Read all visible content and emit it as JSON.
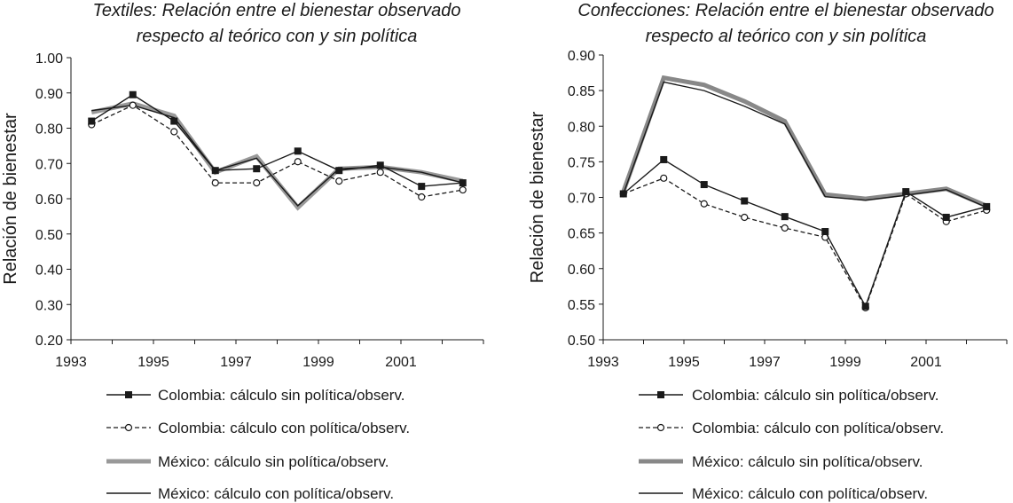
{
  "chart_data": [
    {
      "type": "line",
      "title": [
        "Textiles: Relación entre el bienestar observado",
        "respecto al teórico con y sin política"
      ],
      "ylabel": "Relación de bienestar",
      "xlabel": "",
      "x": [
        1993,
        1994,
        1995,
        1996,
        1997,
        1998,
        1999,
        2000,
        2001,
        2002
      ],
      "x_tick_labels": [
        "1993",
        "1995",
        "1997",
        "1999",
        "2001"
      ],
      "ylim": [
        0.2,
        1.0
      ],
      "y_ticks": [
        "0.20",
        "0.30",
        "0.40",
        "0.50",
        "0.60",
        "0.70",
        "0.80",
        "0.90",
        "1.00"
      ],
      "series": [
        {
          "name": "Colombia: cálculo sin política/observ.",
          "style": "solid-square",
          "color": "#1a1a1a",
          "values": [
            0.82,
            0.895,
            0.82,
            0.68,
            0.685,
            0.735,
            0.68,
            0.695,
            0.635,
            0.645
          ]
        },
        {
          "name": "Colombia: cálculo con política/observ.",
          "style": "dashed-circle",
          "color": "#1a1a1a",
          "values": [
            0.81,
            0.865,
            0.79,
            0.645,
            0.645,
            0.705,
            0.65,
            0.675,
            0.605,
            0.625
          ]
        },
        {
          "name": "México: cálculo sin política/observ.",
          "style": "thick-gray",
          "color": "#999999",
          "values": [
            0.845,
            0.87,
            0.835,
            0.675,
            0.72,
            0.575,
            0.685,
            0.69,
            0.675,
            0.65
          ]
        },
        {
          "name": "México: cálculo con política/observ.",
          "style": "thin",
          "color": "#1a1a1a",
          "values": [
            0.85,
            0.865,
            0.83,
            0.68,
            0.715,
            0.58,
            0.685,
            0.69,
            0.675,
            0.645
          ]
        }
      ]
    },
    {
      "type": "line",
      "title": [
        "Confecciones: Relación entre el bienestar observado",
        "respecto al teórico con y sin política"
      ],
      "ylabel": "Relación de bienestar",
      "xlabel": "",
      "x": [
        1993,
        1994,
        1995,
        1996,
        1997,
        1998,
        1999,
        2000,
        2001,
        2002
      ],
      "x_tick_labels": [
        "1993",
        "1995",
        "1997",
        "1999",
        "2001"
      ],
      "ylim": [
        0.5,
        0.9
      ],
      "y_ticks": [
        "0.50",
        "0.55",
        "0.60",
        "0.65",
        "0.70",
        "0.75",
        "0.80",
        "0.85",
        "0.90"
      ],
      "series": [
        {
          "name": "Colombia: cálculo sin política/observ.",
          "style": "solid-square",
          "color": "#1a1a1a",
          "values": [
            0.705,
            0.753,
            0.718,
            0.695,
            0.673,
            0.652,
            0.547,
            0.708,
            0.672,
            0.687
          ]
        },
        {
          "name": "Colombia: cálculo con política/observ.",
          "style": "dashed-circle",
          "color": "#1a1a1a",
          "values": [
            0.705,
            0.727,
            0.691,
            0.672,
            0.657,
            0.644,
            0.545,
            0.705,
            0.666,
            0.682
          ]
        },
        {
          "name": "México: cálculo sin política/observ.",
          "style": "thick-gray",
          "color": "#888888",
          "values": [
            0.708,
            0.868,
            0.858,
            0.835,
            0.807,
            0.704,
            0.698,
            0.705,
            0.712,
            0.688
          ]
        },
        {
          "name": "México: cálculo con política/observ.",
          "style": "thin",
          "color": "#1a1a1a",
          "values": [
            0.705,
            0.862,
            0.85,
            0.828,
            0.803,
            0.701,
            0.696,
            0.703,
            0.711,
            0.686
          ]
        }
      ]
    }
  ]
}
